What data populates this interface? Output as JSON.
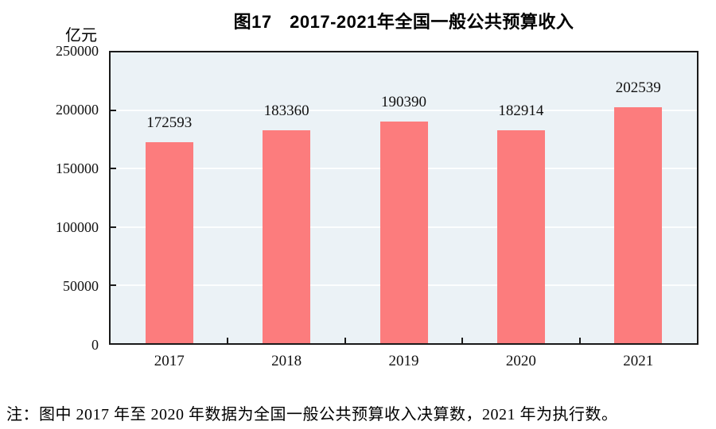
{
  "chart_data": {
    "type": "bar",
    "title": "图17　2017-2021年全国一般公共预算收入",
    "unit_label": "亿元",
    "categories": [
      "2017",
      "2018",
      "2019",
      "2020",
      "2021"
    ],
    "values": [
      172593,
      183360,
      190390,
      182914,
      202539
    ],
    "ylim": [
      0,
      250000
    ],
    "yticks": [
      0,
      50000,
      100000,
      150000,
      200000,
      250000
    ],
    "grid": true,
    "legend_position": "none",
    "colors": {
      "bar": "#FC7C7D",
      "plot_background": "#EBF2F6",
      "gridline": "#FCFEFE",
      "axis": "#1A1A1A",
      "text": "#111111"
    },
    "note": "注：图中 2017 年至 2020 年数据为全国一般公共预算收入决算数，2021 年为执行数。"
  }
}
